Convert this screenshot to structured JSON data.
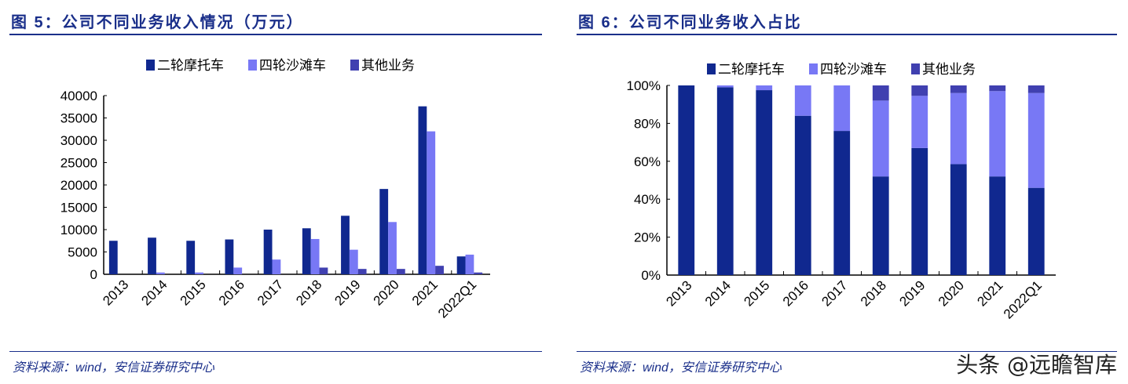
{
  "colors": {
    "moto": "#10288f",
    "atv": "#7878f5",
    "other": "#4040b0"
  },
  "chart_data": [
    {
      "type": "bar",
      "title": "图 5：公司不同业务收入情况（万元）",
      "source": "资料来源：wind，安信证券研究中心",
      "categories": [
        "2013",
        "2014",
        "2015",
        "2016",
        "2017",
        "2018",
        "2019",
        "2020",
        "2021",
        "2022Q1"
      ],
      "ylim": [
        0,
        40000
      ],
      "yticks": [
        "0",
        "5000",
        "10000",
        "15000",
        "20000",
        "25000",
        "30000",
        "35000",
        "40000"
      ],
      "legend": "top",
      "series": [
        {
          "name": "二轮摩托车",
          "values": [
            7500,
            8200,
            7500,
            7800,
            10000,
            10300,
            13100,
            19100,
            37600,
            4000
          ]
        },
        {
          "name": "四轮沙滩车",
          "values": [
            0,
            400,
            400,
            1500,
            3300,
            7900,
            5500,
            11700,
            32000,
            4400
          ]
        },
        {
          "name": "其他业务",
          "values": [
            0,
            0,
            0,
            0,
            0,
            1500,
            1200,
            1200,
            1900,
            400
          ]
        }
      ]
    },
    {
      "type": "bar",
      "stacked": true,
      "title": "图 6：公司不同业务收入占比",
      "source": "资料来源：wind，安信证券研究中心",
      "categories": [
        "2013",
        "2014",
        "2015",
        "2016",
        "2017",
        "2018",
        "2019",
        "2020",
        "2021",
        "2022Q1"
      ],
      "ylim": [
        0,
        100
      ],
      "yticks": [
        "0%",
        "20%",
        "40%",
        "60%",
        "80%",
        "100%"
      ],
      "legend": "top",
      "series": [
        {
          "name": "二轮摩托车",
          "values": [
            100,
            99,
            97.5,
            84,
            76,
            52,
            67,
            58.5,
            52,
            46
          ]
        },
        {
          "name": "四轮沙滩车",
          "values": [
            0,
            1,
            2.5,
            16,
            24,
            40,
            27.5,
            37.5,
            45,
            50
          ]
        },
        {
          "name": "其他业务",
          "values": [
            0,
            0,
            0,
            0,
            0,
            8,
            5.5,
            4,
            3,
            4
          ]
        }
      ]
    }
  ],
  "watermark": "头条 @远瞻智库"
}
